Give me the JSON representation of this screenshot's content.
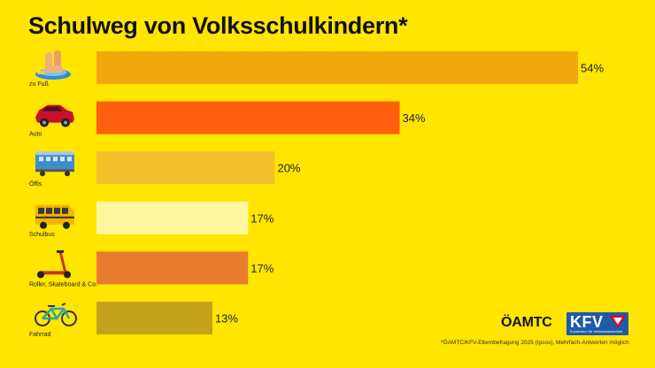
{
  "title": "Schulweg von Volksschulkindern*",
  "footnote": "*ÖAMTC/KFV-Elternbefragung 2025 (Ipsos), Mehrfach-Antworten möglich",
  "logos": {
    "oamtc": "ÖAMTC",
    "kfv": "KFV",
    "kfv_sub": "Kuratorium für Verkehrssicherheit"
  },
  "colors": {
    "background": "#FFE500"
  },
  "chart_data": {
    "type": "bar",
    "orientation": "horizontal",
    "categories": [
      "zu Fuß",
      "Auto",
      "Öffis",
      "Schulbus",
      "Roller, Skateboard & Co.",
      "Fahrrad"
    ],
    "values": [
      54,
      34,
      20,
      17,
      17,
      13
    ],
    "value_labels": [
      "54%",
      "34%",
      "20%",
      "17%",
      "17%",
      "13%"
    ],
    "icons": [
      "feet-on-skateboard-icon",
      "car-icon",
      "train-icon",
      "school-bus-icon",
      "scooter-icon",
      "bicycle-icon"
    ],
    "bar_colors": [
      "#F2A70F",
      "#FF5F0E",
      "#F3C02B",
      "#FFF7A0",
      "#E87C2E",
      "#C4A21C"
    ],
    "xlim": [
      0,
      54
    ],
    "unit": "%",
    "grid": false
  }
}
